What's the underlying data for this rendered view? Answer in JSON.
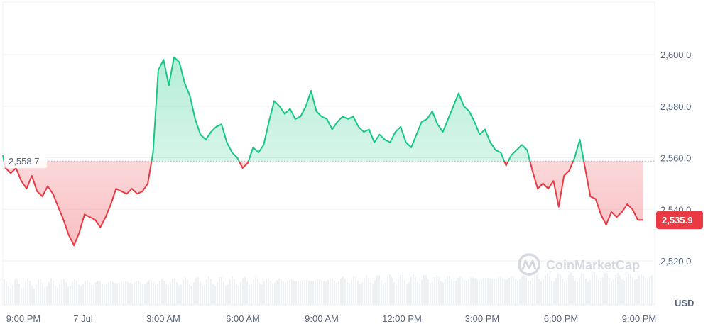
{
  "chart_data": {
    "type": "line",
    "title": "",
    "xlabel": "",
    "ylabel": "",
    "y_unit": "USD",
    "ylim": [
      2508,
      2628
    ],
    "y_ticks": [
      2520,
      2540,
      2560,
      2580,
      2600
    ],
    "y_tick_labels": [
      "2,520.0",
      "2,540.0",
      "2,560.0",
      "2,580.0",
      "2,600.0"
    ],
    "x_tick_labels": [
      "9:00 PM",
      "7 Jul",
      "3:00 AM",
      "6:00 AM",
      "9:00 AM",
      "12:00 PM",
      "3:00 PM",
      "6:00 PM",
      "9:00 PM"
    ],
    "x_tick_hours": [
      0,
      3,
      6,
      9,
      12,
      15,
      18,
      21,
      24
    ],
    "x_unit": "hours",
    "reference_price": 2558.7,
    "reference_label": "2,558.7",
    "current_price": 2535.9,
    "current_label": "2,535.9",
    "watermark": "CoinMarketCap",
    "grid": true,
    "colors": {
      "up": "#16c784",
      "down": "#ea3943",
      "up_fill": "#16c784",
      "down_fill": "#ea3943",
      "grid": "#eff2f5",
      "text": "#58667e",
      "volume": "#eff2f5"
    },
    "series": [
      {
        "x": [
          0,
          0.1,
          0.3,
          0.5,
          0.7,
          0.9,
          1.1,
          1.3,
          1.5,
          1.7,
          1.9,
          2.1,
          2.3,
          2.5,
          2.7,
          2.9,
          3.1,
          3.3,
          3.5,
          3.7,
          3.9,
          4.1,
          4.3,
          4.5,
          4.7,
          4.9,
          5.1,
          5.3,
          5.5,
          5.7,
          5.9,
          6.1,
          6.3,
          6.5,
          6.7,
          6.9,
          7.1,
          7.3,
          7.5,
          7.7,
          7.9,
          8.1,
          8.3,
          8.5,
          8.7,
          8.9,
          9.1,
          9.3,
          9.5,
          9.7,
          9.9,
          10.1,
          10.3,
          10.5,
          10.7,
          10.9,
          11.1,
          11.3,
          11.5,
          11.7,
          11.9,
          12.1,
          12.3,
          12.5,
          12.7,
          12.9,
          13.1,
          13.3,
          13.5,
          13.7,
          13.9,
          14.1,
          14.3,
          14.5,
          14.7,
          14.9,
          15.1,
          15.3,
          15.5,
          15.7,
          15.9,
          16.1,
          16.3,
          16.5,
          16.7,
          16.9,
          17.1,
          17.3,
          17.5,
          17.7,
          17.9,
          18.1,
          18.3,
          18.5,
          18.7,
          18.9,
          19.1,
          19.3,
          19.5,
          19.7,
          19.9,
          20.1,
          20.3,
          20.5,
          20.7,
          20.9,
          21.1,
          21.3,
          21.5,
          21.7,
          21.9,
          22.1,
          22.3,
          22.5,
          22.7,
          22.9,
          23.1,
          23.3,
          23.5,
          23.7,
          23.9,
          24.1,
          24.3
        ],
        "y": [
          2561,
          2556,
          2554,
          2556,
          2551,
          2548,
          2553,
          2547,
          2545,
          2549,
          2546,
          2541,
          2536,
          2530,
          2526,
          2531,
          2538,
          2537,
          2536,
          2533,
          2537,
          2542,
          2548,
          2547,
          2546,
          2548,
          2546,
          2547,
          2550,
          2562,
          2594,
          2598,
          2588,
          2599,
          2597,
          2589,
          2584,
          2575,
          2569,
          2567,
          2570,
          2572,
          2573,
          2566,
          2562,
          2560,
          2556,
          2558,
          2564,
          2562,
          2565,
          2574,
          2582,
          2580,
          2577,
          2579,
          2575,
          2576,
          2580,
          2586,
          2578,
          2576,
          2575,
          2571,
          2574,
          2576,
          2575,
          2576,
          2572,
          2570,
          2571,
          2566,
          2569,
          2567,
          2566,
          2570,
          2572,
          2566,
          2564,
          2569,
          2574,
          2575,
          2578,
          2573,
          2570,
          2575,
          2580,
          2585,
          2580,
          2578,
          2574,
          2569,
          2571,
          2566,
          2563,
          2562,
          2557,
          2561,
          2563,
          2565,
          2563,
          2555,
          2548,
          2550,
          2548,
          2551,
          2541,
          2553,
          2555,
          2560,
          2567,
          2556,
          2545,
          2544,
          2538,
          2534,
          2539,
          2537,
          2539,
          2542,
          2540,
          2535.9,
          2535.9
        ]
      }
    ]
  }
}
